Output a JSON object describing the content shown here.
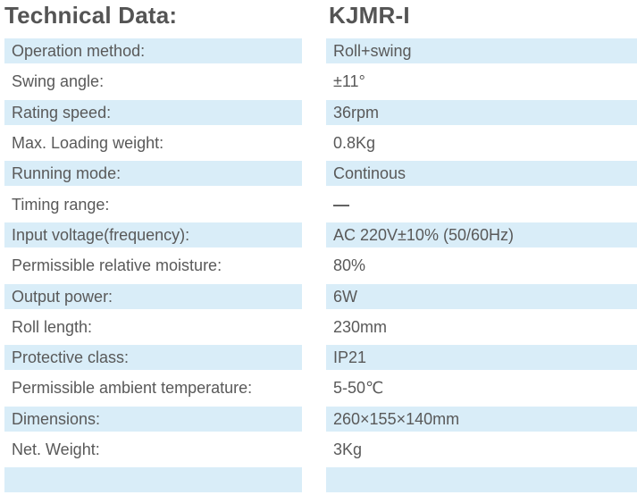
{
  "header": {
    "title": "Technical Data:",
    "model": "KJMR-I"
  },
  "colors": {
    "background": "#ffffff",
    "row_highlight": "#d9edf8",
    "text": "#595959",
    "heading_text": "#545454"
  },
  "table": {
    "rows": [
      {
        "label": "Operation method:",
        "value": "Roll+swing"
      },
      {
        "label": "Swing angle:",
        "value": "±11°"
      },
      {
        "label": "Rating speed:",
        "value": "36rpm"
      },
      {
        "label": "Max. Loading weight:",
        "value": "0.8Kg"
      },
      {
        "label": "Running mode:",
        "value": "Continous"
      },
      {
        "label": "Timing range:",
        "value": "—"
      },
      {
        "label": "Input voltage(frequency):",
        "value": "AC 220V±10% (50/60Hz)"
      },
      {
        "label": "Permissible relative moisture:",
        "value": "80%"
      },
      {
        "label": "Output power:",
        "value": "6W"
      },
      {
        "label": "Roll length:",
        "value": "230mm"
      },
      {
        "label": "Protective class:",
        "value": "IP21"
      },
      {
        "label": "Permissible ambient temperature:",
        "value": "5-50℃"
      },
      {
        "label": "Dimensions:",
        "value": "260×155×140mm"
      },
      {
        "label": "Net. Weight:",
        "value": "3Kg"
      }
    ]
  }
}
